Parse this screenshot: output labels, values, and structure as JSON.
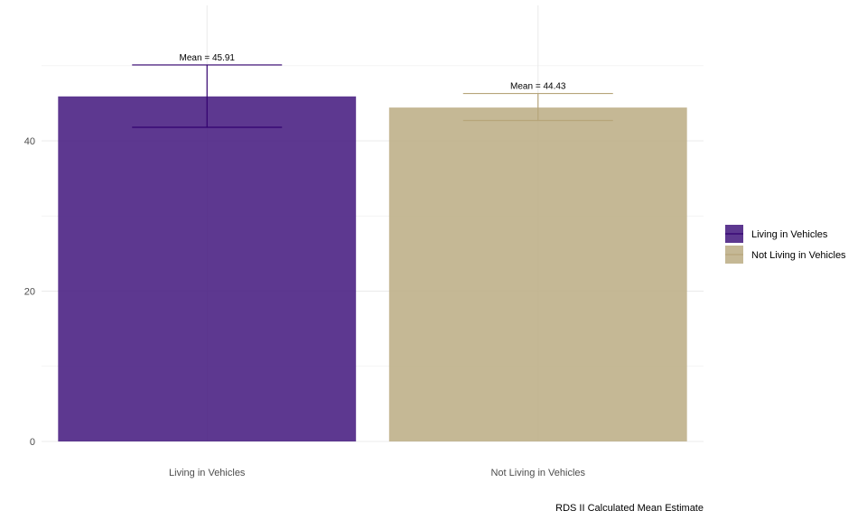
{
  "chart_data": {
    "type": "bar",
    "categories": [
      "Living in Vehicles",
      "Not Living in Vehicles"
    ],
    "values": [
      45.91,
      44.43
    ],
    "error_bars": [
      {
        "low": 41.8,
        "high": 50.1
      },
      {
        "low": 42.7,
        "high": 46.3
      }
    ],
    "data_labels": [
      "Mean = 45.91",
      "Mean = 44.43"
    ],
    "colors": [
      "#4b2284",
      "#bfb08a"
    ],
    "error_colors": [
      "#33006f",
      "#b7a57a"
    ],
    "ylim": [
      0,
      58
    ],
    "yticks": [
      0,
      20,
      40
    ],
    "ytick_labels": [
      "0",
      "20",
      "40"
    ],
    "grid": true,
    "legend": {
      "position": "right",
      "entries": [
        "Living in Vehicles",
        "Not Living in Vehicles"
      ]
    },
    "caption": "RDS II Calculated Mean Estimate",
    "title": "",
    "xlabel": "",
    "ylabel": ""
  }
}
